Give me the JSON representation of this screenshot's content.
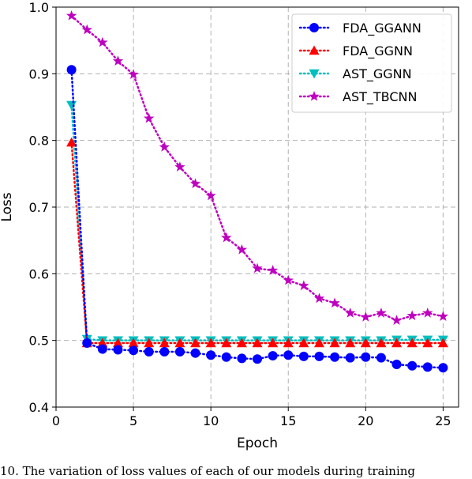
{
  "caption": "10. The variation of loss values of each of our models during training",
  "chart_data": {
    "type": "line",
    "xlabel": "Epoch",
    "ylabel": "Loss",
    "xlim": [
      0,
      26
    ],
    "ylim": [
      0.4,
      1.0
    ],
    "xticks": [
      0,
      5,
      10,
      15,
      20,
      25
    ],
    "yticks": [
      0.4,
      0.5,
      0.6,
      0.7,
      0.8,
      0.9,
      1.0
    ],
    "grid": true,
    "legend_position": "top-right",
    "x": [
      1,
      2,
      3,
      4,
      5,
      6,
      7,
      8,
      9,
      10,
      11,
      12,
      13,
      14,
      15,
      16,
      17,
      18,
      19,
      20,
      21,
      22,
      23,
      24,
      25
    ],
    "series": [
      {
        "name": "FDA_GGANN",
        "color": "#0000ff",
        "marker": "circle",
        "values": [
          0.906,
          0.496,
          0.487,
          0.486,
          0.485,
          0.483,
          0.483,
          0.483,
          0.481,
          0.478,
          0.475,
          0.473,
          0.472,
          0.477,
          0.478,
          0.476,
          0.476,
          0.475,
          0.474,
          0.475,
          0.474,
          0.464,
          0.462,
          0.46,
          0.459
        ]
      },
      {
        "name": "FDA_GGNN",
        "color": "#ff0000",
        "marker": "triangle-up",
        "values": [
          0.797,
          0.496,
          0.496,
          0.496,
          0.496,
          0.496,
          0.496,
          0.496,
          0.496,
          0.496,
          0.496,
          0.496,
          0.496,
          0.496,
          0.496,
          0.496,
          0.496,
          0.496,
          0.496,
          0.496,
          0.496,
          0.496,
          0.496,
          0.496,
          0.496
        ]
      },
      {
        "name": "AST_GGNN",
        "color": "#00bfbf",
        "marker": "triangle-down",
        "values": [
          0.853,
          0.502,
          0.5,
          0.5,
          0.5,
          0.5,
          0.5,
          0.5,
          0.5,
          0.5,
          0.5,
          0.5,
          0.5,
          0.5,
          0.5,
          0.5,
          0.5,
          0.5,
          0.5,
          0.5,
          0.5,
          0.501,
          0.501,
          0.501,
          0.501
        ]
      },
      {
        "name": "AST_TBCNN",
        "color": "#bf00bf",
        "marker": "star",
        "values": [
          0.987,
          0.966,
          0.947,
          0.919,
          0.899,
          0.833,
          0.79,
          0.76,
          0.735,
          0.717,
          0.654,
          0.636,
          0.608,
          0.605,
          0.59,
          0.582,
          0.563,
          0.556,
          0.541,
          0.535,
          0.541,
          0.53,
          0.537,
          0.541,
          0.536
        ]
      }
    ]
  }
}
